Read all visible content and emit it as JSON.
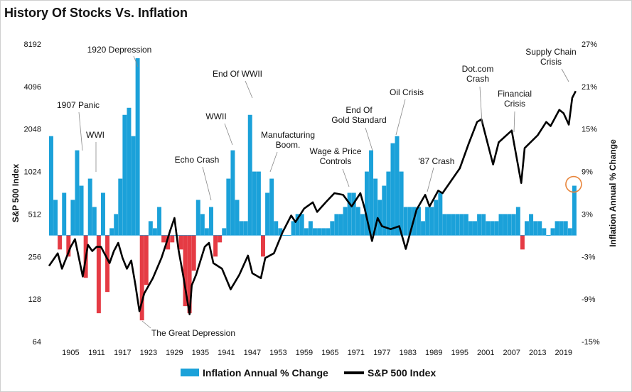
{
  "chart_data": {
    "type": "bar+line",
    "title": "History Of Stocks Vs. Inflation",
    "ylabel_left": "S&P 500 Index",
    "ylabel_right": "Inflation Annual % Change",
    "left_axis_scale": "log2",
    "left_ylim": [
      64,
      8192
    ],
    "left_ticks": [
      "64",
      "128",
      "256",
      "512",
      "1024",
      "2048",
      "4096",
      "8192"
    ],
    "right_ylim": [
      -15,
      27
    ],
    "right_ticks": [
      "-15%",
      "-9%",
      "-3%",
      "3%",
      "9%",
      "15%",
      "21%",
      "27%"
    ],
    "xlim": [
      1900,
      2022
    ],
    "x_ticks": [
      "1905",
      "1911",
      "1917",
      "1923",
      "1929",
      "1935",
      "1941",
      "1947",
      "1953",
      "1959",
      "1965",
      "1971",
      "1977",
      "1983",
      "1989",
      "1995",
      "2001",
      "2007",
      "2013",
      "2019"
    ],
    "legend_position": "bottom",
    "legend": [
      "Inflation Annual % Change",
      "S&P 500 Index"
    ],
    "colors": {
      "inflation_positive": "#1ba1d9",
      "inflation_negative": "#e53b44",
      "sp500": "#000000",
      "highlight_circle": "#e8853b"
    },
    "series": [
      {
        "name": "S&P 500 Index",
        "x": [
          1900,
          1902,
          1903,
          1905,
          1906,
          1907.8,
          1909,
          1910,
          1911,
          1912,
          1914,
          1915,
          1916,
          1917,
          1918,
          1919,
          1920,
          1920.9,
          1922,
          1924,
          1926,
          1927,
          1928,
          1929,
          1929.9,
          1931,
          1932.5,
          1933,
          1934,
          1936,
          1937,
          1938,
          1940,
          1942,
          1944,
          1946,
          1947,
          1949,
          1950,
          1952,
          1954,
          1956,
          1957,
          1959,
          1961,
          1962,
          1964,
          1966,
          1968,
          1970,
          1972,
          1973,
          1974.7,
          1976,
          1977,
          1979,
          1981,
          1982.5,
          1985,
          1987,
          1988,
          1990,
          1991,
          1995,
          1997,
          1999,
          2000,
          2002.7,
          2004,
          2007,
          2009.2,
          2010,
          2013,
          2015,
          2016,
          2018,
          2019,
          2020.2,
          2021,
          2021.8
        ],
        "values": [
          220,
          270,
          210,
          300,
          340,
          185,
          310,
          280,
          300,
          300,
          230,
          280,
          320,
          250,
          210,
          240,
          160,
          105,
          140,
          180,
          250,
          310,
          390,
          480,
          290,
          190,
          100,
          160,
          190,
          300,
          320,
          230,
          210,
          150,
          190,
          260,
          195,
          180,
          250,
          270,
          380,
          500,
          450,
          560,
          620,
          530,
          620,
          720,
          700,
          580,
          720,
          560,
          330,
          480,
          420,
          400,
          420,
          290,
          550,
          700,
          580,
          750,
          720,
          1080,
          1600,
          2300,
          2400,
          1150,
          1650,
          2000,
          850,
          1500,
          1850,
          2300,
          2150,
          2800,
          2650,
          2200,
          3400,
          3800
        ]
      },
      {
        "name": "Inflation Annual % Change",
        "x": [
          1900,
          1901,
          1902,
          1903,
          1904,
          1905,
          1906,
          1907,
          1908,
          1909,
          1910,
          1911,
          1912,
          1913,
          1914,
          1915,
          1916,
          1917,
          1918,
          1919,
          1920,
          1921,
          1922,
          1923,
          1924,
          1925,
          1926,
          1927,
          1928,
          1929,
          1930,
          1931,
          1932,
          1933,
          1934,
          1935,
          1936,
          1937,
          1938,
          1939,
          1940,
          1941,
          1942,
          1943,
          1944,
          1945,
          1946,
          1947,
          1948,
          1949,
          1950,
          1951,
          1952,
          1953,
          1954,
          1955,
          1956,
          1957,
          1958,
          1959,
          1960,
          1961,
          1962,
          1963,
          1964,
          1965,
          1966,
          1967,
          1968,
          1969,
          1970,
          1971,
          1972,
          1973,
          1974,
          1975,
          1976,
          1977,
          1978,
          1979,
          1980,
          1981,
          1982,
          1983,
          1984,
          1985,
          1986,
          1987,
          1988,
          1989,
          1990,
          1991,
          1992,
          1993,
          1994,
          1995,
          1996,
          1997,
          1998,
          1999,
          2000,
          2001,
          2002,
          2003,
          2004,
          2005,
          2006,
          2007,
          2008,
          2009,
          2010,
          2011,
          2012,
          2013,
          2014,
          2015,
          2016,
          2017,
          2018,
          2019,
          2020,
          2021
        ],
        "values": [
          14,
          5,
          -2,
          6,
          -3,
          5,
          12,
          7,
          -6,
          8,
          4,
          -11,
          6,
          -8,
          1,
          3,
          8,
          17,
          18,
          14,
          25,
          -12,
          -7,
          2,
          1,
          4,
          -1,
          -2,
          -1,
          0,
          -2,
          -10,
          -11,
          -5,
          5,
          3,
          1,
          4,
          -3,
          -1,
          1,
          8,
          12,
          5,
          2,
          2,
          17,
          9,
          9,
          -3,
          6,
          8,
          2,
          1,
          0,
          0,
          2,
          3,
          3,
          1,
          2,
          1,
          1,
          1,
          1,
          2,
          3,
          3,
          4,
          6,
          6,
          4,
          3,
          9,
          12,
          8,
          5,
          7,
          9,
          13,
          14,
          9,
          4,
          4,
          4,
          4,
          2,
          4,
          4,
          5,
          6,
          3,
          3,
          3,
          3,
          3,
          3,
          2,
          2,
          3,
          3,
          2,
          2,
          2,
          3,
          3,
          3,
          3,
          4,
          -2,
          2,
          3,
          2,
          2,
          1,
          0,
          1,
          2,
          2,
          2,
          1,
          7
        ]
      }
    ],
    "annotations": [
      {
        "text": "1920 Depression",
        "x": 1920,
        "y": 6500
      },
      {
        "text": "1907 Panic",
        "x": 1907,
        "y": 2700
      },
      {
        "text": "WWI",
        "x": 1911,
        "y": 2000
      },
      {
        "text": "End Of WWII",
        "x": 1947,
        "y": 4200
      },
      {
        "text": "WWII",
        "x": 1942,
        "y": 2200
      },
      {
        "text": "Echo Crash",
        "x": 1937,
        "y": 1000
      },
      {
        "text": "Manufacturing Boom.",
        "x": 1950,
        "y": 1400
      },
      {
        "text": "Wage & Price Controls",
        "x": 1972,
        "y": 1000
      },
      {
        "text": "End Of Gold Standard",
        "x": 1974,
        "y": 1900
      },
      {
        "text": "Oil Crisis",
        "x": 1980,
        "y": 3000
      },
      {
        "text": "'87 Crash",
        "x": 1987,
        "y": 1000
      },
      {
        "text": "Dot.com Crash",
        "x": 2000,
        "y": 4000
      },
      {
        "text": "Financial Crisis",
        "x": 2008,
        "y": 2600
      },
      {
        "text": "Supply Chain Crisis",
        "x": 2021,
        "y": 6000
      },
      {
        "text": "The Great Depression",
        "x": 1932,
        "y": 70
      }
    ]
  }
}
